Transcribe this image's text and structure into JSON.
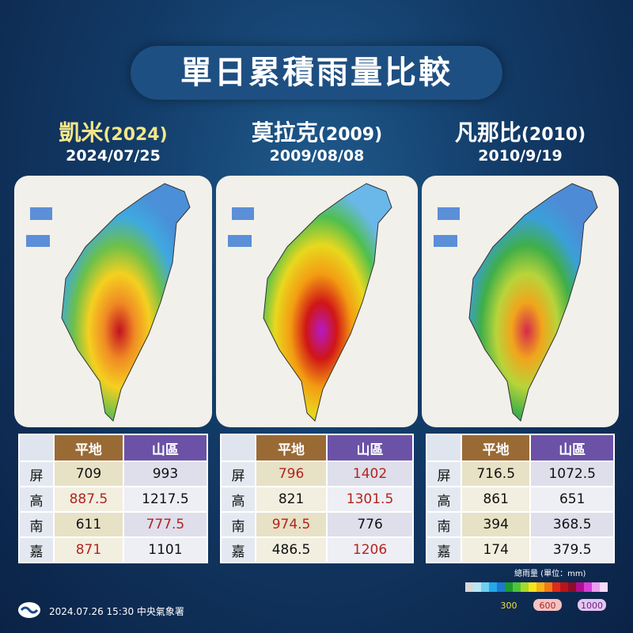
{
  "title": "單日累積雨量比較",
  "panels": [
    {
      "name": "凱米",
      "year": "(2024)",
      "date": "2024/07/25",
      "name_color": "#f3e68a",
      "table": {
        "headers": [
          "平地",
          "山區"
        ],
        "rows": [
          {
            "label": "屏",
            "cells": [
              {
                "text": "709"
              },
              {
                "text": "993"
              }
            ]
          },
          {
            "label": "高",
            "cells": [
              {
                "text": "887.5",
                "color": "#b3241e"
              },
              {
                "text": "1217.5"
              }
            ]
          },
          {
            "label": "南",
            "cells": [
              {
                "text": "611"
              },
              {
                "text": "777.5",
                "color": "#b3241e"
              }
            ]
          },
          {
            "label": "嘉",
            "cells": [
              {
                "text": "871",
                "color": "#b3241e"
              },
              {
                "text": "1101"
              }
            ]
          }
        ]
      }
    },
    {
      "name": "莫拉克",
      "year": "(2009)",
      "date": "2009/08/08",
      "name_color": "#ffffff",
      "table": {
        "headers": [
          "平地",
          "山區"
        ],
        "rows": [
          {
            "label": "屏",
            "cells": [
              {
                "text": "796",
                "color": "#b3241e"
              },
              {
                "text": "1402",
                "color": "#b3241e"
              }
            ]
          },
          {
            "label": "高",
            "cells": [
              {
                "text": "821"
              },
              {
                "text": "1301.5",
                "color": "#b3241e"
              }
            ]
          },
          {
            "label": "南",
            "cells": [
              {
                "text": "974.5",
                "color": "#b3241e"
              },
              {
                "text": "776"
              }
            ]
          },
          {
            "label": "嘉",
            "cells": [
              {
                "text": "486.5"
              },
              {
                "text": "1206",
                "color": "#b3241e"
              }
            ]
          }
        ]
      }
    },
    {
      "name": "凡那比",
      "year": "(2010)",
      "date": "2010/9/19",
      "name_color": "#ffffff",
      "table": {
        "headers": [
          "平地",
          "山區"
        ],
        "rows": [
          {
            "label": "屏",
            "cells": [
              {
                "text": "716.5"
              },
              {
                "text": "1072.5"
              }
            ]
          },
          {
            "label": "高",
            "cells": [
              {
                "text": "861"
              },
              {
                "text": "651"
              }
            ]
          },
          {
            "label": "南",
            "cells": [
              {
                "text": "394"
              },
              {
                "text": "368.5"
              }
            ]
          },
          {
            "label": "嘉",
            "cells": [
              {
                "text": "174"
              },
              {
                "text": "379.5"
              }
            ]
          }
        ]
      }
    }
  ],
  "legend": {
    "title": "總雨量 (單位：mm)",
    "labels": [
      "300",
      "600",
      "1000"
    ]
  },
  "footer": "2024.07.26   15:30 中央氣象署"
}
